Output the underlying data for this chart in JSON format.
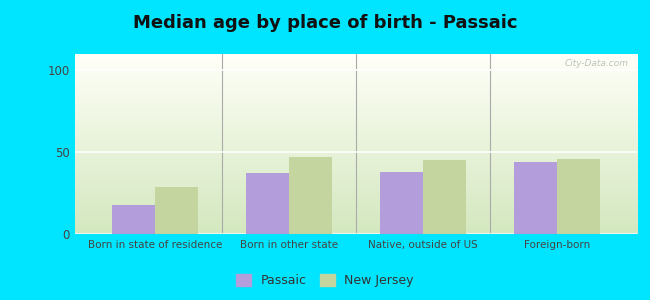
{
  "title": "Median age by place of birth - Passaic",
  "categories": [
    "Born in state of residence",
    "Born in other state",
    "Native, outside of US",
    "Foreign-born"
  ],
  "passaic_values": [
    18,
    37,
    38,
    44
  ],
  "nj_values": [
    29,
    47,
    45,
    46
  ],
  "passaic_color": "#b39ddb",
  "nj_color": "#c5d5a0",
  "ylim": [
    0,
    110
  ],
  "yticks": [
    0,
    50,
    100
  ],
  "bg_grad_top": "#f5f5f0",
  "bg_grad_bottom": "#d4e8c0",
  "outer_bg": "#00e5ff",
  "title_fontsize": 13,
  "legend_labels": [
    "Passaic",
    "New Jersey"
  ],
  "watermark": "City-Data.com",
  "bar_width": 0.32
}
